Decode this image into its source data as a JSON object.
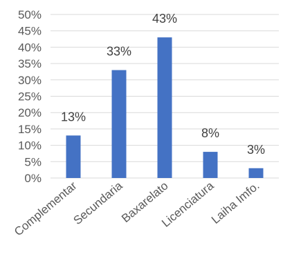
{
  "chart_data": {
    "type": "bar",
    "categories": [
      "Complementar",
      "Secundaria",
      "Baxarelato",
      "Licenciatura",
      "Laiha Imfo."
    ],
    "values": [
      13,
      33,
      43,
      8,
      3
    ],
    "data_labels": [
      "13%",
      "33%",
      "43%",
      "8%",
      "3%"
    ],
    "y_ticks": [
      "0%",
      "5%",
      "10%",
      "15%",
      "20%",
      "25%",
      "30%",
      "35%",
      "40%",
      "45%",
      "50%"
    ],
    "ylim": [
      0,
      50
    ],
    "grid": true,
    "legend": "none",
    "bar_color": "#4472c4",
    "title": "",
    "xlabel": "",
    "ylabel": ""
  }
}
